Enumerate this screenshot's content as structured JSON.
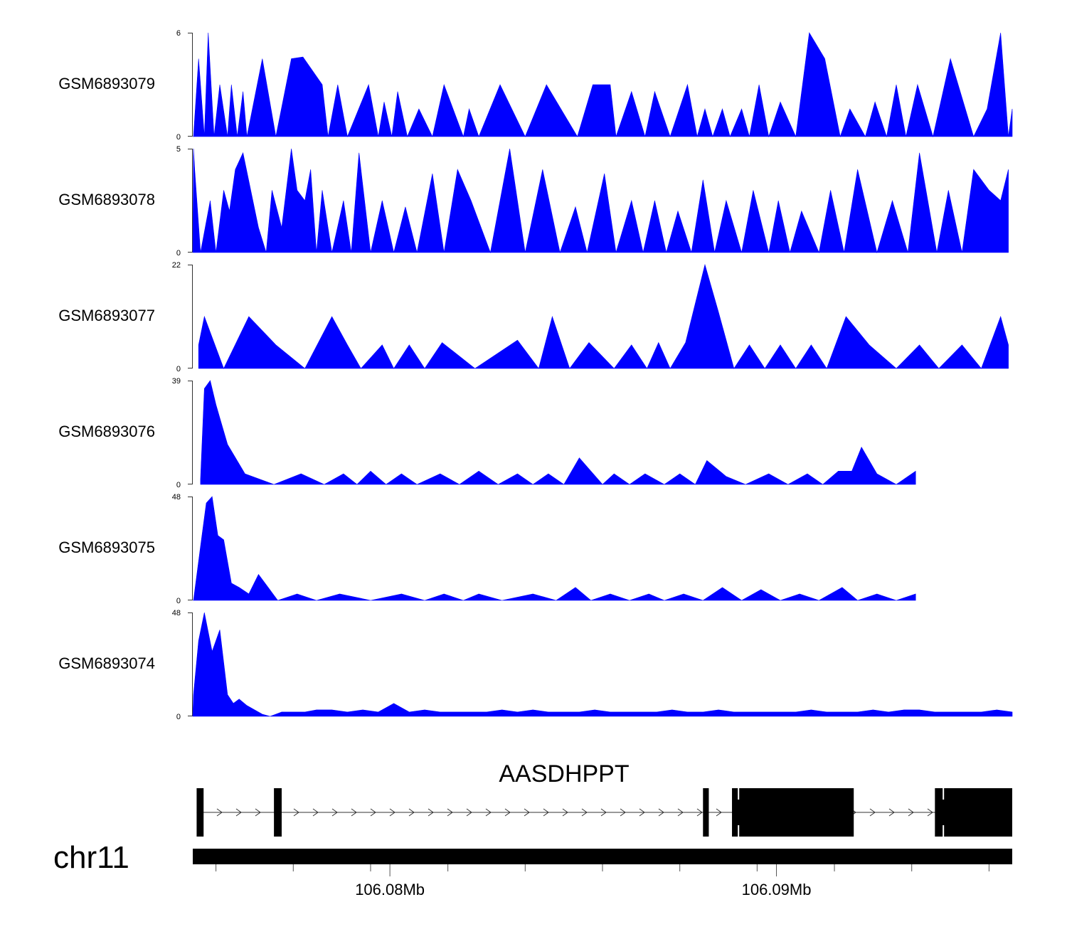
{
  "chart_data": {
    "type": "area",
    "title": "",
    "x_unit": "Mb",
    "x_range": [
      106.0749,
      106.0961
    ],
    "fill_color": "#0000ff",
    "tracks": [
      {
        "name": "GSM6893079",
        "ymax": 6,
        "ymax_label": "6",
        "ymin_label": "0",
        "x": [
          106.0749,
          106.07505,
          106.0752,
          106.0753,
          106.07545,
          106.0756,
          106.0758,
          106.0759,
          106.07605,
          106.0762,
          106.0763,
          106.0767,
          106.07705,
          106.07745,
          106.07775,
          106.07825,
          106.0784,
          106.07865,
          106.0789,
          106.07945,
          106.0797,
          106.07985,
          106.08005,
          106.0802,
          106.08045,
          106.08075,
          106.0811,
          106.0814,
          106.0819,
          106.08205,
          106.0823,
          106.08285,
          106.0835,
          106.08405,
          106.08485,
          106.08525,
          106.0857,
          106.08585,
          106.08625,
          106.0866,
          106.08685,
          106.08725,
          106.0877,
          106.08795,
          106.08815,
          106.08835,
          106.0886,
          106.0888,
          106.0891,
          106.0893,
          106.08955,
          106.0898,
          106.0901,
          106.0905,
          106.09085,
          106.09125,
          106.09165,
          106.0919,
          106.0923,
          106.09255,
          106.09285,
          106.0931,
          106.09335,
          106.09365,
          106.09405,
          106.0945,
          106.0951,
          106.09545,
          106.0958,
          106.096,
          106.0961
        ],
        "y": [
          0,
          4.5,
          0,
          6,
          0,
          3,
          0,
          3,
          0,
          2.6,
          0,
          4.5,
          0,
          4.5,
          4.6,
          3,
          0,
          3,
          0,
          3,
          0,
          2,
          0,
          2.6,
          0,
          1.6,
          0,
          3,
          0,
          1.6,
          0,
          3,
          0,
          3,
          0,
          3,
          3,
          0,
          2.6,
          0,
          2.6,
          0,
          3,
          0,
          1.6,
          0,
          1.6,
          0,
          1.6,
          0,
          3,
          0,
          2,
          0,
          6,
          4.5,
          0,
          1.6,
          0,
          2,
          0,
          3,
          0,
          3,
          0,
          4.5,
          0,
          1.6,
          6,
          0,
          1.6
        ]
      },
      {
        "name": "GSM6893078",
        "ymax": 5,
        "ymax_label": "5",
        "ymin_label": "0",
        "x": [
          106.0749,
          106.07495,
          106.0751,
          106.07535,
          106.0755,
          106.0757,
          106.07585,
          106.076,
          106.0762,
          106.0764,
          106.0766,
          106.0768,
          106.07695,
          106.0772,
          106.07745,
          106.0776,
          106.0778,
          106.07795,
          106.0781,
          106.07825,
          106.0785,
          106.0788,
          106.079,
          106.0792,
          106.0795,
          106.0798,
          106.0801,
          106.0804,
          106.0807,
          106.0811,
          106.0814,
          106.08175,
          106.0821,
          106.0826,
          106.0831,
          106.0835,
          106.08395,
          106.0844,
          106.0848,
          106.0851,
          106.08555,
          106.08585,
          106.08625,
          106.08655,
          106.08685,
          106.08715,
          106.08745,
          106.0878,
          106.0881,
          106.0884,
          106.0887,
          106.0891,
          106.0894,
          106.0898,
          106.09005,
          106.09035,
          106.09065,
          106.0911,
          106.0914,
          106.09175,
          106.0921,
          106.0926,
          106.093,
          106.0934,
          106.0937,
          106.09415,
          106.09445,
          106.0948,
          106.0951,
          106.0955,
          106.0958,
          106.096
        ],
        "y": [
          5,
          4,
          0,
          2.5,
          0,
          3,
          2,
          4,
          4.8,
          3,
          1.2,
          0,
          3,
          1.2,
          5,
          3,
          2.5,
          4,
          0,
          3,
          0,
          2.5,
          0,
          4.8,
          0,
          2.5,
          0,
          2.2,
          0,
          3.8,
          0,
          4,
          2.5,
          0,
          5,
          0,
          4,
          0,
          2.2,
          0,
          3.8,
          0,
          2.5,
          0,
          2.5,
          0,
          2,
          0,
          3.5,
          0,
          2.5,
          0,
          3,
          0,
          2.5,
          0,
          2,
          0,
          3,
          0,
          4,
          0,
          2.5,
          0,
          4.8,
          0,
          3,
          0,
          4,
          3,
          2.5,
          4
        ]
      },
      {
        "name": "GSM6893077",
        "ymax": 22,
        "ymax_label": "22",
        "ymin_label": "0",
        "x": [
          106.07505,
          106.0752,
          106.0757,
          106.07635,
          106.07705,
          106.0778,
          106.0785,
          106.0789,
          106.07925,
          106.0798,
          106.0801,
          106.0805,
          106.0809,
          106.08135,
          106.0822,
          106.0833,
          106.08385,
          106.0842,
          106.08465,
          106.08515,
          106.0858,
          106.08625,
          106.08665,
          106.08695,
          106.08725,
          106.08765,
          106.08815,
          106.0885,
          106.0889,
          106.0893,
          106.0897,
          106.0901,
          106.0905,
          106.0909,
          106.0913,
          106.0918,
          106.0924,
          106.0931,
          106.0937,
          106.0942,
          106.0948,
          106.0953,
          106.0958,
          106.096
        ],
        "y": [
          5,
          11,
          0,
          11,
          5,
          0,
          11,
          5,
          0,
          5,
          0,
          5,
          0,
          5.5,
          0,
          6,
          0,
          11,
          0,
          5.5,
          0,
          5,
          0,
          5.5,
          0,
          5.5,
          22,
          12,
          0,
          5,
          0,
          5,
          0,
          5,
          0,
          11,
          5,
          0,
          5,
          0,
          5,
          0,
          11,
          5
        ]
      },
      {
        "name": "GSM6893076",
        "ymax": 39,
        "ymax_label": "39",
        "ymin_label": "0",
        "x": [
          106.0751,
          106.0752,
          106.07535,
          106.0755,
          106.0756,
          106.0758,
          106.07625,
          106.077,
          106.0777,
          106.0783,
          106.0788,
          106.07915,
          106.0795,
          106.0799,
          106.0803,
          106.0807,
          106.0813,
          106.0818,
          106.0823,
          106.0828,
          106.0833,
          106.0837,
          106.0841,
          106.0845,
          106.0849,
          106.0852,
          106.0855,
          106.0858,
          106.0862,
          106.0866,
          106.0871,
          106.0875,
          106.0879,
          106.0882,
          106.0887,
          106.0892,
          106.0898,
          106.0903,
          106.0908,
          106.0912,
          106.0916,
          106.09195,
          106.0922,
          106.0926,
          106.0931,
          106.0936
        ],
        "y": [
          2,
          36,
          39,
          30,
          25,
          15,
          4,
          0,
          4,
          0,
          4,
          0,
          5,
          0,
          4,
          0,
          4,
          0,
          5,
          0,
          4,
          0,
          4,
          0,
          10,
          5,
          0,
          4,
          0,
          4,
          0,
          4,
          0,
          9,
          3,
          0,
          4,
          0,
          4,
          0,
          5,
          5,
          14,
          4,
          0,
          5
        ]
      },
      {
        "name": "GSM6893075",
        "ymax": 48,
        "ymax_label": "48",
        "ymin_label": "0",
        "x": [
          106.0749,
          106.0751,
          106.07525,
          106.0754,
          106.07555,
          106.0757,
          106.0759,
          106.0761,
          106.07635,
          106.0766,
          106.0771,
          106.0776,
          106.0781,
          106.0787,
          106.0795,
          106.0803,
          106.0809,
          106.0814,
          106.0819,
          106.0823,
          106.0829,
          106.0837,
          106.0843,
          106.0848,
          106.0852,
          106.0857,
          106.0862,
          106.0867,
          106.0871,
          106.0876,
          106.0881,
          106.0886,
          106.0891,
          106.0896,
          106.0901,
          106.0906,
          106.0911,
          106.0917,
          106.0921,
          106.0926,
          106.0931,
          106.0936
        ],
        "y": [
          0,
          25,
          45,
          48,
          30,
          28,
          8,
          6,
          3,
          12,
          0,
          3,
          0,
          3,
          0,
          3,
          0,
          3,
          0,
          3,
          0,
          3,
          0,
          6,
          0,
          3,
          0,
          3,
          0,
          3,
          0,
          6,
          0,
          5,
          0,
          3,
          0,
          6,
          0,
          3,
          0,
          3
        ]
      },
      {
        "name": "GSM6893074",
        "ymax": 48,
        "ymax_label": "48",
        "ymin_label": "0",
        "x": [
          106.0749,
          106.07505,
          106.0752,
          106.0754,
          106.0756,
          106.0758,
          106.07595,
          106.0761,
          106.0763,
          106.0765,
          106.0767,
          106.0769,
          106.0772,
          106.0775,
          106.0778,
          106.0781,
          106.0785,
          106.0789,
          106.0793,
          106.0797,
          106.0801,
          106.0805,
          106.0809,
          106.0813,
          106.0817,
          106.0821,
          106.0825,
          106.0829,
          106.0833,
          106.0837,
          106.0841,
          106.0845,
          106.0849,
          106.0853,
          106.0857,
          106.0861,
          106.0865,
          106.0869,
          106.0873,
          106.0877,
          106.0881,
          106.0885,
          106.0889,
          106.0893,
          106.0897,
          106.0901,
          106.0905,
          106.0909,
          106.0913,
          106.0917,
          106.0921,
          106.0925,
          106.0929,
          106.0933,
          106.0937,
          106.0941,
          106.0945,
          106.0949,
          106.0953,
          106.0957,
          106.0961
        ],
        "y": [
          10,
          35,
          48,
          30,
          40,
          10,
          6,
          8,
          5,
          3,
          1,
          0,
          2,
          2,
          2,
          3,
          3,
          2,
          3,
          2,
          6,
          2,
          3,
          2,
          2,
          2,
          2,
          3,
          2,
          3,
          2,
          2,
          2,
          3,
          2,
          2,
          2,
          2,
          3,
          2,
          2,
          3,
          2,
          2,
          2,
          2,
          2,
          3,
          2,
          2,
          2,
          3,
          2,
          3,
          3,
          2,
          2,
          2,
          2,
          3,
          2
        ]
      }
    ],
    "gene": {
      "name": "AASDHPPT",
      "strand": "+",
      "exons": [
        [
          106.075,
          106.07518
        ],
        [
          106.077,
          106.0772
        ],
        [
          106.0881,
          106.08825
        ],
        [
          106.08885,
          106.0889
        ],
        [
          106.0889,
          106.092
        ],
        [
          106.0941,
          106.0961
        ]
      ],
      "thick_exons": [
        [
          106.089,
          106.092
        ],
        [
          106.0943,
          106.0961
        ]
      ]
    },
    "chromosome": {
      "name": "chr11"
    },
    "axis": {
      "ticks_major": [
        106.08,
        106.09
      ],
      "tick_labels": [
        "106.08Mb",
        "106.09Mb"
      ],
      "tick_minor_step": 0.002,
      "tick_minor_start": 106.0755
    }
  }
}
